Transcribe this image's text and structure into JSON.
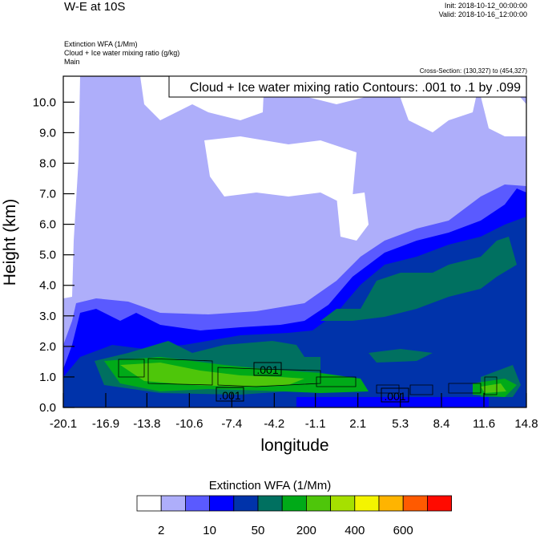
{
  "header": {
    "title": "W-E at 10S",
    "init": "Init: 2018-10-12_00:00:00",
    "valid": "Valid: 2018-10-16_12:00:00",
    "subtitles": [
      "Extinction WFA   (1/Mm)",
      "Cloud + Ice water mixing ratio   (g/kg)",
      "Main"
    ],
    "cross_section": "Cross-Section: (130,327) to (454,327)"
  },
  "chart_data": {
    "type": "heatmap",
    "title": "W-E at 10S",
    "xlabel": "longitude",
    "ylabel": "Height (km)",
    "xlim": [
      -20.1,
      14.8
    ],
    "ylim": [
      0,
      10.85
    ],
    "xticks": [
      "-20.1",
      "-16.9",
      "-13.8",
      "-10.6",
      "-7.4",
      "-4.2",
      "-1.1",
      "2.1",
      "5.3",
      "8.4",
      "11.6",
      "14.8"
    ],
    "yticks": [
      "0.0",
      "1.0",
      "2.0",
      "3.0",
      "4.0",
      "5.0",
      "6.0",
      "7.0",
      "8.0",
      "9.0",
      "10.0"
    ],
    "contour_info": "Cloud + Ice water mixing ratio Contours: .001 to .1 by .099",
    "contour_labels": [
      ".001",
      ".001",
      ".001"
    ],
    "colorbar": {
      "title": "Extinction WFA  (1/Mm)",
      "colors": [
        "#ffffff",
        "#aeaefa",
        "#5a5aff",
        "#0000ff",
        "#0033aa",
        "#007060",
        "#00aa18",
        "#4ec60a",
        "#a6e000",
        "#f4f400",
        "#ffb400",
        "#ff5a00",
        "#ff0a00"
      ],
      "labels": [
        "2",
        "10",
        "50",
        "200",
        "400",
        "600"
      ]
    }
  }
}
